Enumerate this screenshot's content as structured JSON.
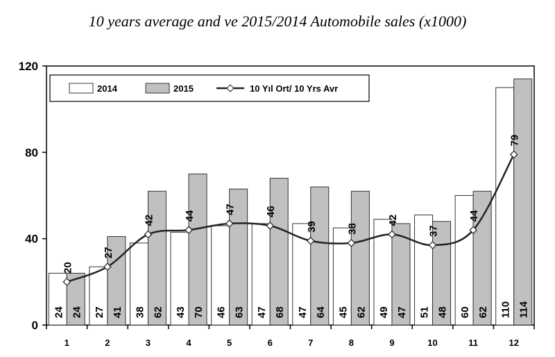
{
  "chart_data": {
    "type": "bar",
    "title": "10 years average and ve 2015/2014 Automobile sales (x1000)",
    "xlabel": "",
    "ylabel": "",
    "ylim": [
      0,
      120
    ],
    "yticks": [
      0,
      40,
      80,
      120
    ],
    "grid": false,
    "legend_position": "top",
    "categories": [
      "1",
      "2",
      "3",
      "4",
      "5",
      "6",
      "7",
      "8",
      "9",
      "10",
      "11",
      "12"
    ],
    "series": [
      {
        "name": "2014",
        "kind": "bar",
        "color": "#ffffff",
        "values": [
          24,
          27,
          38,
          43,
          46,
          47,
          47,
          45,
          49,
          51,
          60,
          110
        ]
      },
      {
        "name": "2015",
        "kind": "bar",
        "color": "#c0c0c0",
        "values": [
          24,
          41,
          62,
          70,
          63,
          68,
          64,
          62,
          47,
          48,
          62,
          114
        ]
      },
      {
        "name": "10 Yıl Ort/ 10 Yrs Avr",
        "kind": "line",
        "color": "#222222",
        "values": [
          20,
          27,
          42,
          44,
          47,
          46,
          39,
          38,
          42,
          37,
          44,
          79
        ]
      }
    ]
  }
}
